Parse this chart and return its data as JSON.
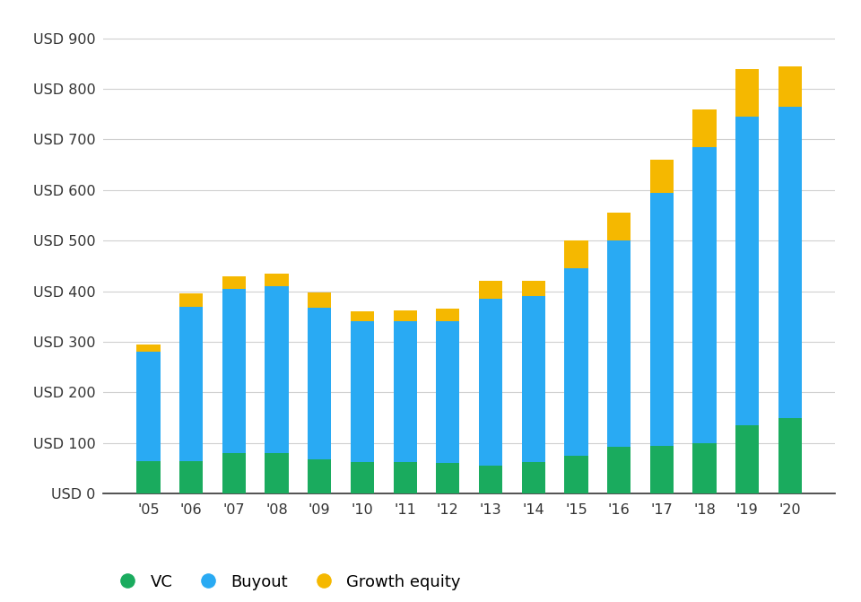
{
  "years": [
    "'05",
    "'06",
    "'07",
    "'08",
    "'09",
    "'10",
    "'11",
    "'12",
    "'13",
    "'14",
    "'15",
    "'16",
    "'17",
    "'18",
    "'19",
    "'20"
  ],
  "vc": [
    65,
    65,
    80,
    80,
    68,
    63,
    62,
    60,
    55,
    63,
    75,
    93,
    95,
    100,
    135,
    150
  ],
  "buyout": [
    215,
    305,
    325,
    330,
    300,
    277,
    278,
    280,
    330,
    328,
    370,
    408,
    500,
    585,
    610,
    615
  ],
  "growth": [
    15,
    25,
    25,
    25,
    30,
    20,
    22,
    25,
    35,
    30,
    55,
    55,
    65,
    75,
    95,
    80
  ],
  "vc_color": "#1aab5e",
  "buyout_color": "#29aaf3",
  "growth_color": "#f5b800",
  "background_color": "#ffffff",
  "grid_color": "#d0d0d0",
  "ylabel_values": [
    0,
    100,
    200,
    300,
    400,
    500,
    600,
    700,
    800,
    900
  ],
  "ylabel_prefix": "USD ",
  "ylim": [
    0,
    940
  ],
  "legend_labels": [
    "VC",
    "Buyout",
    "Growth equity"
  ],
  "bar_width": 0.55
}
